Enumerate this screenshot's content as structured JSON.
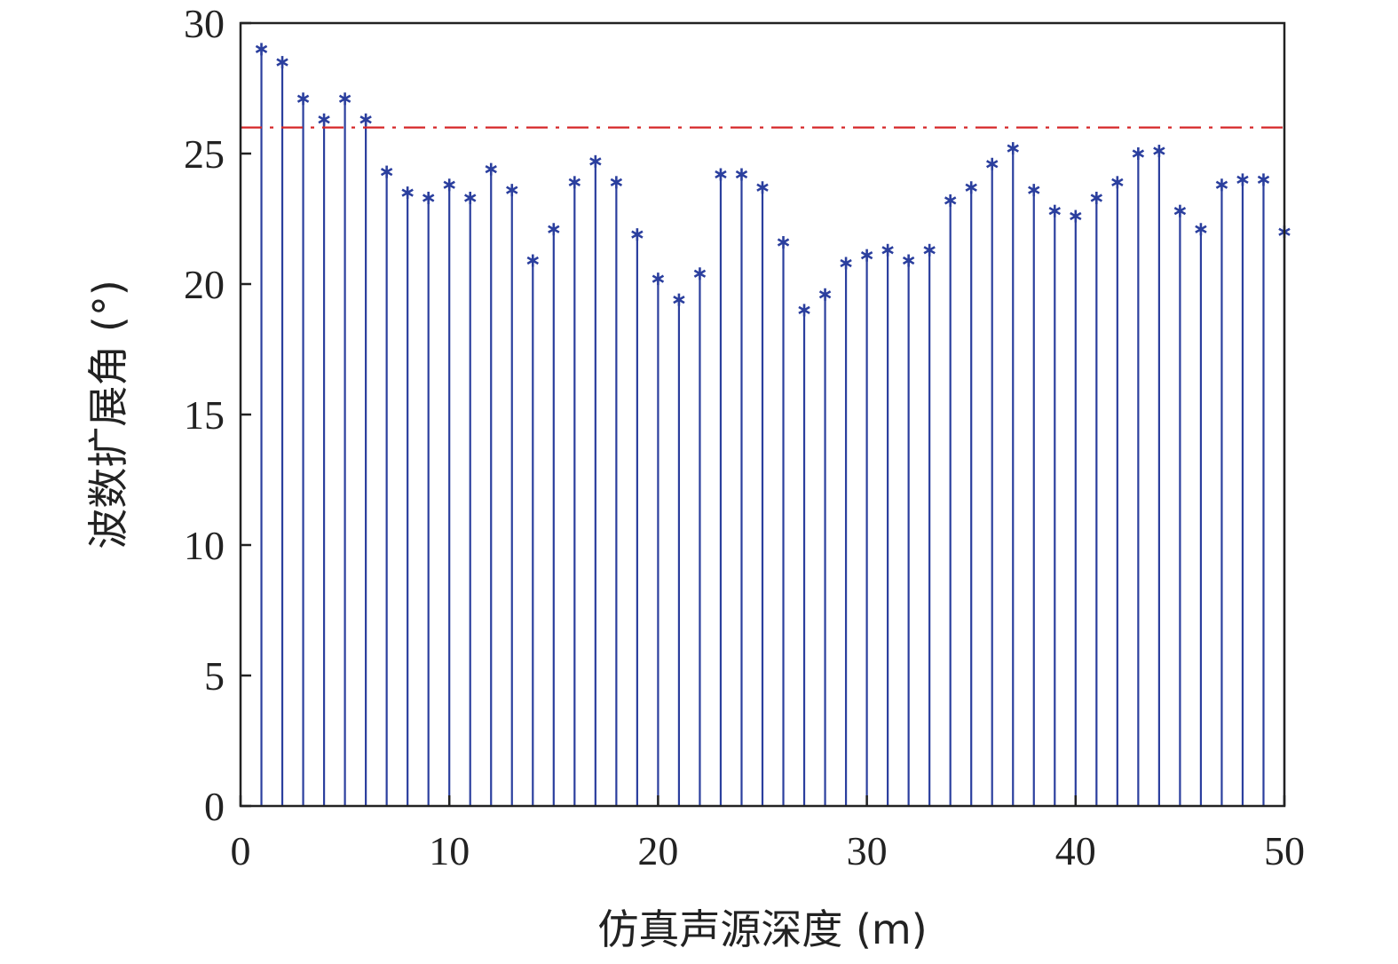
{
  "chart_data": {
    "type": "stem",
    "xlabel": "仿真声源深度 (m)",
    "ylabel": "波数扩展角 (°)",
    "xlim": [
      0,
      50
    ],
    "ylim": [
      0,
      30
    ],
    "xticks": [
      "0",
      "10",
      "20",
      "30",
      "40",
      "50"
    ],
    "yticks": [
      "0",
      "5",
      "10",
      "15",
      "20",
      "25",
      "30"
    ],
    "x": [
      1,
      2,
      3,
      4,
      5,
      6,
      7,
      8,
      9,
      10,
      11,
      12,
      13,
      14,
      15,
      16,
      17,
      18,
      19,
      20,
      21,
      22,
      23,
      24,
      25,
      26,
      27,
      28,
      29,
      30,
      31,
      32,
      33,
      34,
      35,
      36,
      37,
      38,
      39,
      40,
      41,
      42,
      43,
      44,
      45,
      46,
      47,
      48,
      49,
      50
    ],
    "values": [
      29.0,
      28.5,
      27.1,
      26.3,
      27.1,
      26.3,
      24.3,
      23.5,
      23.3,
      23.8,
      23.3,
      24.4,
      23.6,
      20.9,
      22.1,
      23.9,
      24.7,
      23.9,
      21.9,
      20.2,
      19.4,
      20.4,
      24.2,
      24.2,
      23.7,
      21.6,
      19.0,
      19.6,
      20.8,
      21.1,
      21.3,
      20.9,
      21.3,
      23.2,
      23.7,
      24.6,
      25.2,
      23.6,
      22.8,
      22.6,
      23.3,
      23.9,
      25.0,
      25.1,
      22.8,
      22.1,
      23.8,
      24.0,
      24.0,
      22.0
    ],
    "threshold": 26.0,
    "colors": {
      "stem": "#2b3f9e",
      "marker": "#2b3f9e",
      "threshold": "#d62728",
      "axis": "#222222"
    },
    "grid": false
  }
}
